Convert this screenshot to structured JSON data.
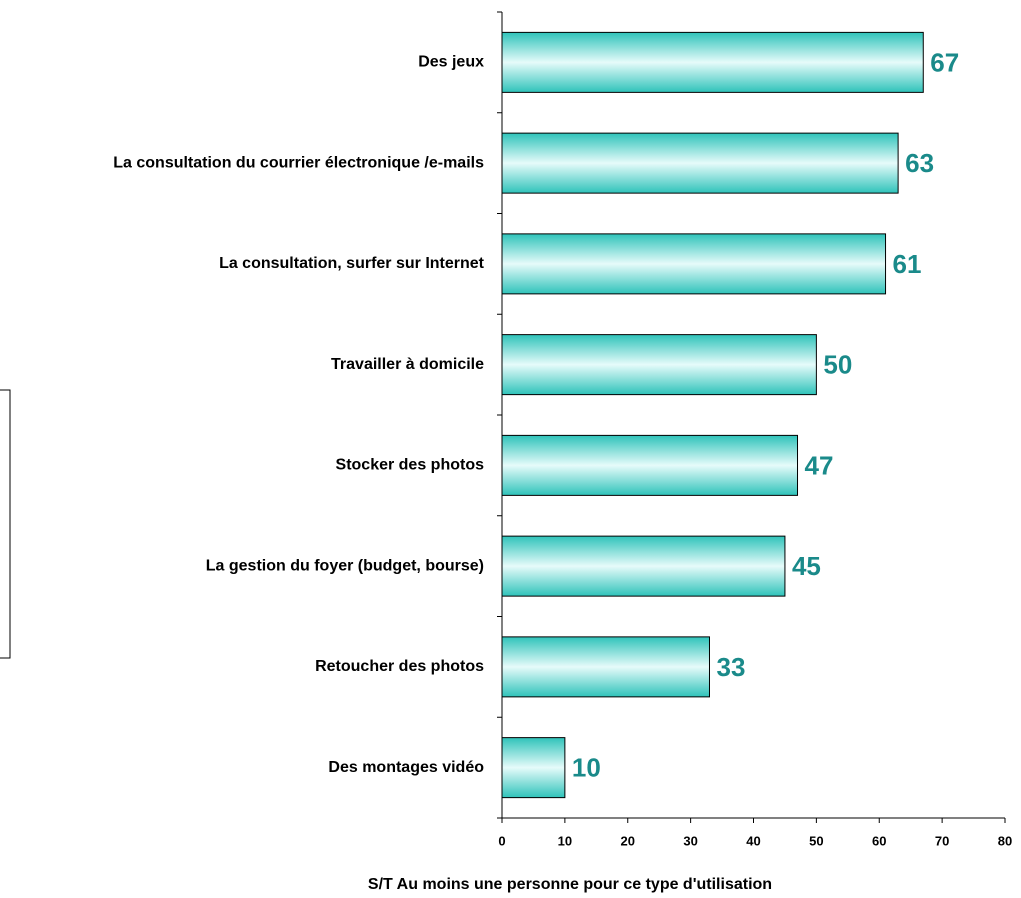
{
  "chart_data": {
    "type": "bar",
    "orientation": "horizontal",
    "xlabel": "S/T Au moins une personne pour ce type d'utilisation",
    "categories": [
      "Des jeux",
      "La consultation du courrier électronique /e-mails",
      "La consultation, surfer sur Internet",
      "Travailler à domicile",
      "Stocker des photos",
      "La gestion du foyer (budget, bourse)",
      "Retoucher des photos",
      "Des montages vidéo"
    ],
    "values": [
      67,
      63,
      61,
      50,
      47,
      45,
      33,
      10
    ],
    "color": "#33c9c0",
    "label_color": "#1a8a8a",
    "xlim": [
      0,
      80
    ],
    "xticks": [
      0,
      10,
      20,
      30,
      40,
      50,
      60,
      70,
      80
    ]
  }
}
